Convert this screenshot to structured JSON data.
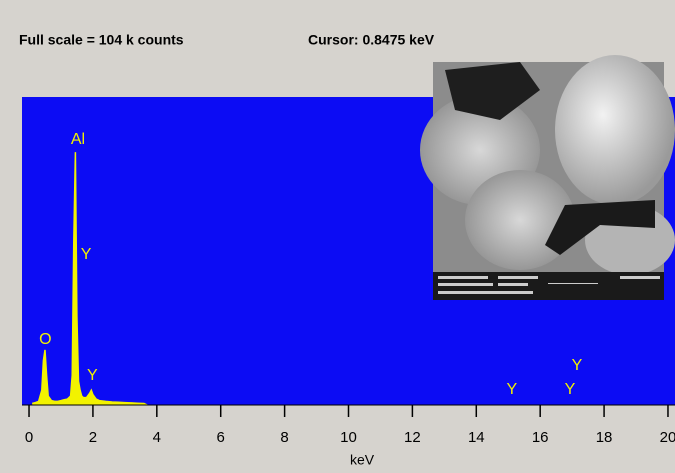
{
  "window": {
    "full_scale": "Full scale = 104 k counts",
    "cursor": "Cursor:  0.8475 keV"
  },
  "chart_data": {
    "type": "area",
    "x": [
      0.1,
      0.2,
      0.3,
      0.4,
      0.45,
      0.5,
      0.55,
      0.6,
      0.7,
      0.8,
      0.9,
      1.0,
      1.1,
      1.2,
      1.3,
      1.35,
      1.4,
      1.45,
      1.5,
      1.55,
      1.6,
      1.65,
      1.7,
      1.8,
      1.9,
      1.95,
      2.0,
      2.1,
      2.2,
      2.4,
      2.6,
      2.8,
      3.0,
      3.2,
      3.4,
      3.6,
      3.7
    ],
    "values": [
      0.5,
      0.8,
      1.2,
      5,
      15,
      18.6,
      10,
      3,
      1.5,
      1.2,
      1.2,
      1.5,
      1.8,
      2,
      3,
      10,
      55.7,
      85.4,
      30,
      8,
      5,
      3,
      2.5,
      2.5,
      4,
      5,
      3.5,
      2,
      1.5,
      1.2,
      1,
      0.9,
      0.8,
      0.7,
      0.6,
      0.5,
      0
    ],
    "color": "#f2f200",
    "background": "#0c0cf4",
    "xlim": [
      -0.22,
      20.22
    ],
    "ylim": [
      0,
      104
    ],
    "xticks": [
      0,
      2,
      4,
      6,
      8,
      10,
      12,
      14,
      16,
      18,
      20
    ],
    "xlabel": "keV",
    "peak_labels": [
      {
        "text": "Al",
        "x": 1.47
      },
      {
        "text": "Y",
        "x": 1.6
      },
      {
        "text": "O",
        "x": 0.45
      },
      {
        "text": "Y",
        "x": 1.92
      },
      {
        "text": "Y",
        "x": 15.05
      },
      {
        "text": "Y",
        "x": 16.87
      },
      {
        "text": "Y",
        "x": 17.09
      }
    ]
  }
}
